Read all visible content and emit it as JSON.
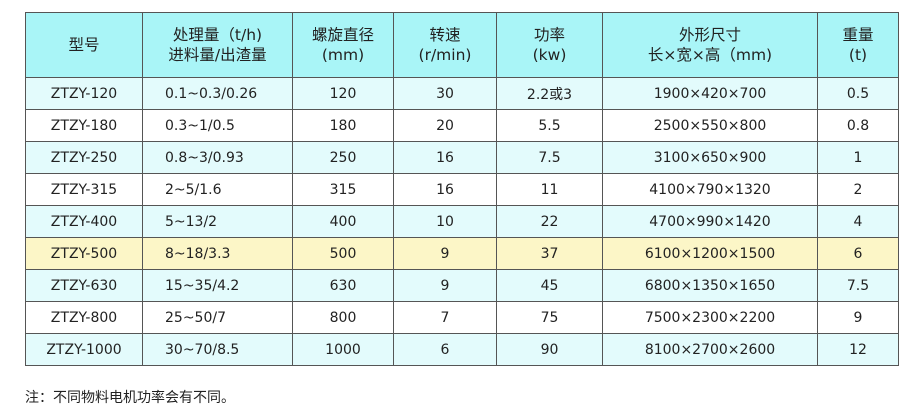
{
  "headers": [
    [
      "型号"
    ],
    [
      "处理量（t/h)",
      "进料量/出渣量"
    ],
    [
      "螺旋直径",
      "(mm)"
    ],
    [
      "转速",
      "(r/min)"
    ],
    [
      "功率",
      "(kw)"
    ],
    [
      "外形尺寸",
      "长×宽×高（mm)"
    ],
    [
      "重量",
      "(t)"
    ]
  ],
  "rows": [
    {
      "style": "cyan",
      "cells": [
        "ZTZY-120",
        "0.1~0.3/0.26",
        "120",
        "30",
        "2.2或3",
        "1900×420×700",
        "0.5"
      ]
    },
    {
      "style": "white",
      "cells": [
        "ZTZY-180",
        "0.3~1/0.5",
        "180",
        "20",
        "5.5",
        "2500×550×800",
        "0.8"
      ]
    },
    {
      "style": "cyan",
      "cells": [
        "ZTZY-250",
        "0.8~3/0.93",
        "250",
        "16",
        "7.5",
        "3100×650×900",
        "1"
      ]
    },
    {
      "style": "white",
      "cells": [
        "ZTZY-315",
        "2~5/1.6",
        "315",
        "16",
        "11",
        "4100×790×1320",
        "2"
      ]
    },
    {
      "style": "cyan",
      "cells": [
        "ZTZY-400",
        "5~13/2",
        "400",
        "10",
        "22",
        "4700×990×1420",
        "4"
      ]
    },
    {
      "style": "yellow",
      "cells": [
        "ZTZY-500",
        "8~18/3.3",
        "500",
        "9",
        "37",
        "6100×1200×1500",
        "6"
      ]
    },
    {
      "style": "cyan",
      "cells": [
        "ZTZY-630",
        "15~35/4.2",
        "630",
        "9",
        "45",
        "6800×1350×1650",
        "7.5"
      ]
    },
    {
      "style": "white",
      "cells": [
        "ZTZY-800",
        "25~50/7",
        "800",
        "7",
        "75",
        "7500×2300×2200",
        "9"
      ]
    },
    {
      "style": "cyan",
      "cells": [
        "ZTZY-1000",
        "30~70/8.5",
        "1000",
        "6",
        "90",
        "8100×2700×2600",
        "12"
      ]
    }
  ],
  "colors": {
    "header": "#a9f5f7",
    "row_cyan": "#e3fbfc",
    "row_highlight": "#fcf6c7",
    "border": "#555555"
  },
  "note": "注：不同物料电机功率会有不同。"
}
